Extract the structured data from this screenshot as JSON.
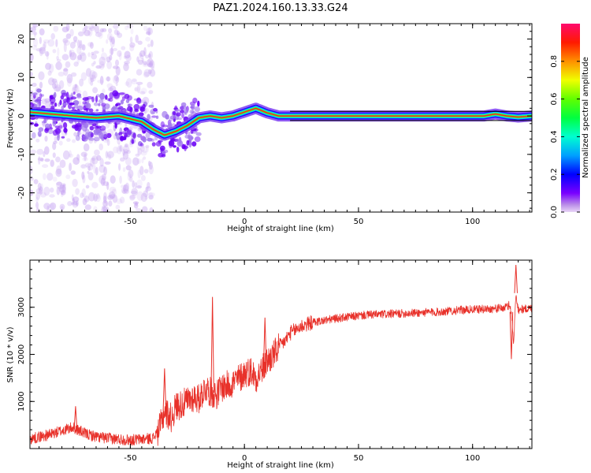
{
  "figure": {
    "title": "PAZ1.2024.160.13.33.G24"
  },
  "chart_data": [
    {
      "type": "heatmap",
      "xlabel": "Height of straight line (km)",
      "ylabel": "Frequency (Hz)",
      "xlim": [
        -94,
        126
      ],
      "ylim": [
        -25,
        24
      ],
      "x_ticks": [
        -50,
        0,
        50,
        100
      ],
      "y_ticks": [
        -20,
        -10,
        0,
        10,
        20
      ],
      "y_tick_labels": [
        "-20",
        "-10",
        "0",
        "10",
        "20"
      ],
      "grid": false,
      "colormap": "gist_rainbow_r",
      "colorbar": {
        "label": "Normalized spectral amplitude",
        "range": [
          0,
          1
        ],
        "ticks": [
          0.0,
          0.2,
          0.4,
          0.6,
          0.8
        ],
        "tick_labels": [
          "0.0",
          "0.2",
          "0.4",
          "0.6",
          "0.8"
        ]
      },
      "ridge": {
        "x": [
          -94,
          -85,
          -75,
          -65,
          -55,
          -45,
          -40,
          -35,
          -30,
          -25,
          -20,
          -15,
          -10,
          -5,
          0,
          5,
          10,
          15,
          20,
          60,
          105,
          110,
          115,
          120,
          126
        ],
        "y": [
          1,
          0.5,
          0,
          -0.5,
          0,
          -1.5,
          -3.5,
          -5,
          -4,
          -2.5,
          -0.5,
          0,
          -0.5,
          0,
          1,
          2,
          0.8,
          0,
          0,
          0,
          0,
          0.5,
          0,
          -0.3,
          0
        ]
      }
    },
    {
      "type": "line",
      "xlabel": "Height of straight line (km)",
      "ylabel": "SNR (10 * v/v)",
      "xlim": [
        -94,
        126
      ],
      "ylim": [
        0,
        4000
      ],
      "x_ticks": [
        -50,
        0,
        50,
        100
      ],
      "y_ticks": [
        1000,
        2000,
        3000
      ],
      "grid": false,
      "series": [
        {
          "color": "#e8312a",
          "x": [
            -94,
            -90,
            -85,
            -80,
            -75,
            -70,
            -65,
            -60,
            -55,
            -50,
            -45,
            -40,
            -37,
            -35,
            -32,
            -30,
            -27,
            -25,
            -22,
            -20,
            -17,
            -15,
            -12,
            -10,
            -7,
            -5,
            -2,
            0,
            3,
            5,
            8,
            10,
            13,
            15,
            18,
            20,
            25,
            30,
            35,
            40,
            45,
            50,
            55,
            60,
            65,
            70,
            75,
            80,
            85,
            90,
            95,
            100,
            105,
            110,
            113,
            115,
            116,
            117,
            118,
            119,
            120,
            122,
            126
          ],
          "y": [
            200,
            250,
            300,
            380,
            450,
            320,
            250,
            220,
            200,
            180,
            200,
            220,
            450,
            800,
            650,
            900,
            950,
            1000,
            1100,
            1050,
            1300,
            1200,
            1150,
            1300,
            1350,
            1400,
            1500,
            1600,
            1650,
            1500,
            1700,
            1850,
            2000,
            2150,
            2300,
            2450,
            2600,
            2680,
            2720,
            2760,
            2790,
            2820,
            2840,
            2850,
            2860,
            2870,
            2880,
            2890,
            2900,
            2920,
            2940,
            2950,
            2960,
            2970,
            2980,
            3000,
            3050,
            2900,
            2200,
            3300,
            2950,
            2960,
            2980
          ]
        }
      ],
      "spikes": [
        {
          "x": -74,
          "y": 900
        },
        {
          "x": -35,
          "y": 1700
        },
        {
          "x": -14,
          "y": 3220
        },
        {
          "x": 9,
          "y": 2780
        },
        {
          "x": 117,
          "y": 1900
        },
        {
          "x": 119,
          "y": 3900
        }
      ]
    }
  ]
}
